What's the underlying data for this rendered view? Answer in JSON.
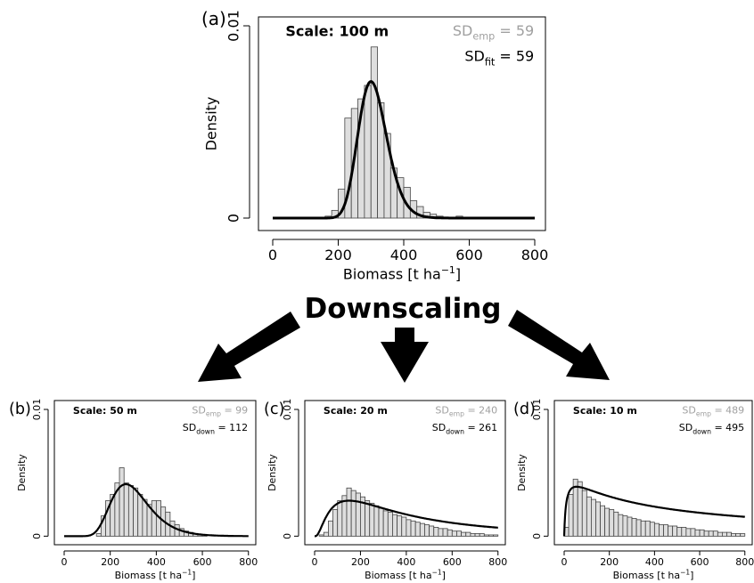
{
  "center_label": "Downscaling",
  "chart_data": [
    {
      "panel": "(a)",
      "type": "bar",
      "xlabel": "Biomass [t ha",
      "xlabel_sup": "−1",
      "xlabel_close": "]",
      "ylabel": "Density",
      "scale_label": "Scale: 100 m",
      "sd_emp": {
        "prefix": "SD",
        "sub": "emp",
        "eq": "=",
        "value": "59"
      },
      "sd_fit": {
        "prefix": "SD",
        "sub": "fit",
        "eq": "=",
        "value": "59"
      },
      "xlim": [
        0,
        800
      ],
      "ylim": [
        0,
        0.01
      ],
      "xticks": [
        "0",
        "200",
        "400",
        "600",
        "800"
      ],
      "yticks": [
        "0",
        "0.01"
      ],
      "bin_width": 20,
      "bins": [
        {
          "x": 160,
          "y": 0.0001
        },
        {
          "x": 180,
          "y": 0.0004
        },
        {
          "x": 200,
          "y": 0.0015
        },
        {
          "x": 220,
          "y": 0.0052
        },
        {
          "x": 240,
          "y": 0.0057
        },
        {
          "x": 260,
          "y": 0.0062
        },
        {
          "x": 280,
          "y": 0.0069
        },
        {
          "x": 300,
          "y": 0.0089
        },
        {
          "x": 320,
          "y": 0.006
        },
        {
          "x": 340,
          "y": 0.0044
        },
        {
          "x": 360,
          "y": 0.0026
        },
        {
          "x": 380,
          "y": 0.0021
        },
        {
          "x": 400,
          "y": 0.0016
        },
        {
          "x": 420,
          "y": 0.0009
        },
        {
          "x": 440,
          "y": 0.0006
        },
        {
          "x": 460,
          "y": 0.0003
        },
        {
          "x": 480,
          "y": 0.0002
        },
        {
          "x": 500,
          "y": 0.0001
        },
        {
          "x": 560,
          "y": 0.0001
        }
      ],
      "curve": {
        "kind": "lognormal",
        "mode": 300,
        "sd": 59,
        "peak": 0.0071
      }
    },
    {
      "panel": "(b)",
      "type": "bar",
      "xlabel": "Biomass [t ha",
      "xlabel_sup": "−1",
      "xlabel_close": "]",
      "ylabel": "Density",
      "scale_label": "Scale: 50 m",
      "sd_emp": {
        "prefix": "SD",
        "sub": "emp",
        "eq": "=",
        "value": "99"
      },
      "sd_fit": {
        "prefix": "SD",
        "sub": "down",
        "eq": "=",
        "value": "112"
      },
      "xlim": [
        0,
        800
      ],
      "ylim": [
        0,
        0.01
      ],
      "xticks": [
        "0",
        "200",
        "400",
        "600",
        "800"
      ],
      "yticks": [
        "0",
        "0.01"
      ],
      "bin_width": 20,
      "bins": [
        {
          "x": 140,
          "y": 0.0002
        },
        {
          "x": 160,
          "y": 0.0016
        },
        {
          "x": 180,
          "y": 0.0028
        },
        {
          "x": 200,
          "y": 0.0033
        },
        {
          "x": 220,
          "y": 0.0042
        },
        {
          "x": 240,
          "y": 0.0054
        },
        {
          "x": 260,
          "y": 0.0042
        },
        {
          "x": 280,
          "y": 0.004
        },
        {
          "x": 300,
          "y": 0.0038
        },
        {
          "x": 320,
          "y": 0.0033
        },
        {
          "x": 340,
          "y": 0.0029
        },
        {
          "x": 360,
          "y": 0.0025
        },
        {
          "x": 380,
          "y": 0.0028
        },
        {
          "x": 400,
          "y": 0.0028
        },
        {
          "x": 420,
          "y": 0.0023
        },
        {
          "x": 440,
          "y": 0.0019
        },
        {
          "x": 460,
          "y": 0.0012
        },
        {
          "x": 480,
          "y": 0.0009
        },
        {
          "x": 500,
          "y": 0.0006
        },
        {
          "x": 520,
          "y": 0.0004
        },
        {
          "x": 540,
          "y": 0.0003
        },
        {
          "x": 560,
          "y": 0.0002
        },
        {
          "x": 580,
          "y": 0.0001
        },
        {
          "x": 600,
          "y": 0.0001
        }
      ],
      "curve": {
        "kind": "lognormal",
        "mode": 268,
        "sd": 112,
        "peak": 0.0041
      }
    },
    {
      "panel": "(c)",
      "type": "bar",
      "xlabel": "Biomass [t ha",
      "xlabel_sup": "−1",
      "xlabel_close": "]",
      "ylabel": "Density",
      "scale_label": "Scale: 20 m",
      "sd_emp": {
        "prefix": "SD",
        "sub": "emp",
        "eq": "=",
        "value": "240"
      },
      "sd_fit": {
        "prefix": "SD",
        "sub": "down",
        "eq": "=",
        "value": "261"
      },
      "xlim": [
        0,
        800
      ],
      "ylim": [
        0,
        0.01
      ],
      "xticks": [
        "0",
        "200",
        "400",
        "600",
        "800"
      ],
      "yticks": [
        "0",
        "0.01"
      ],
      "bin_width": 20,
      "bins": [
        {
          "x": 20,
          "y": 0.0001
        },
        {
          "x": 40,
          "y": 0.0003
        },
        {
          "x": 60,
          "y": 0.0012
        },
        {
          "x": 80,
          "y": 0.0021
        },
        {
          "x": 100,
          "y": 0.0028
        },
        {
          "x": 120,
          "y": 0.0032
        },
        {
          "x": 140,
          "y": 0.0038
        },
        {
          "x": 160,
          "y": 0.0036
        },
        {
          "x": 180,
          "y": 0.0034
        },
        {
          "x": 200,
          "y": 0.0031
        },
        {
          "x": 220,
          "y": 0.0028
        },
        {
          "x": 240,
          "y": 0.0026
        },
        {
          "x": 260,
          "y": 0.0024
        },
        {
          "x": 280,
          "y": 0.0022
        },
        {
          "x": 300,
          "y": 0.002
        },
        {
          "x": 320,
          "y": 0.0019
        },
        {
          "x": 340,
          "y": 0.0017
        },
        {
          "x": 360,
          "y": 0.0016
        },
        {
          "x": 380,
          "y": 0.0015
        },
        {
          "x": 400,
          "y": 0.0013
        },
        {
          "x": 420,
          "y": 0.0012
        },
        {
          "x": 440,
          "y": 0.0011
        },
        {
          "x": 460,
          "y": 0.001
        },
        {
          "x": 480,
          "y": 0.0009
        },
        {
          "x": 500,
          "y": 0.0008
        },
        {
          "x": 520,
          "y": 0.0007
        },
        {
          "x": 540,
          "y": 0.0006
        },
        {
          "x": 560,
          "y": 0.0006
        },
        {
          "x": 580,
          "y": 0.0005
        },
        {
          "x": 600,
          "y": 0.0004
        },
        {
          "x": 620,
          "y": 0.0004
        },
        {
          "x": 640,
          "y": 0.0003
        },
        {
          "x": 660,
          "y": 0.0003
        },
        {
          "x": 680,
          "y": 0.0002
        },
        {
          "x": 700,
          "y": 0.0002
        },
        {
          "x": 720,
          "y": 0.0002
        },
        {
          "x": 740,
          "y": 0.0001
        },
        {
          "x": 760,
          "y": 0.0001
        },
        {
          "x": 780,
          "y": 0.0001
        }
      ],
      "curve": {
        "kind": "lognormal",
        "mode": 150,
        "sd": 261,
        "peak": 0.0028
      }
    },
    {
      "panel": "(d)",
      "type": "bar",
      "xlabel": "Biomass [t ha",
      "xlabel_sup": "−1",
      "xlabel_close": "]",
      "ylabel": "Density",
      "scale_label": "Scale: 10 m",
      "sd_emp": {
        "prefix": "SD",
        "sub": "emp",
        "eq": "=",
        "value": "489"
      },
      "sd_fit": {
        "prefix": "SD",
        "sub": "down",
        "eq": "=",
        "value": "495"
      },
      "xlim": [
        0,
        800
      ],
      "ylim": [
        0,
        0.01
      ],
      "xticks": [
        "0",
        "200",
        "400",
        "600",
        "800"
      ],
      "yticks": [
        "0",
        "0.01"
      ],
      "bin_width": 20,
      "bins": [
        {
          "x": 0,
          "y": 0.0007
        },
        {
          "x": 20,
          "y": 0.0033
        },
        {
          "x": 40,
          "y": 0.0045
        },
        {
          "x": 60,
          "y": 0.0043
        },
        {
          "x": 80,
          "y": 0.0036
        },
        {
          "x": 100,
          "y": 0.0031
        },
        {
          "x": 120,
          "y": 0.0029
        },
        {
          "x": 140,
          "y": 0.0027
        },
        {
          "x": 160,
          "y": 0.0024
        },
        {
          "x": 180,
          "y": 0.0022
        },
        {
          "x": 200,
          "y": 0.0021
        },
        {
          "x": 220,
          "y": 0.0019
        },
        {
          "x": 240,
          "y": 0.0017
        },
        {
          "x": 260,
          "y": 0.0016
        },
        {
          "x": 280,
          "y": 0.0015
        },
        {
          "x": 300,
          "y": 0.0014
        },
        {
          "x": 320,
          "y": 0.0013
        },
        {
          "x": 340,
          "y": 0.0012
        },
        {
          "x": 360,
          "y": 0.0012
        },
        {
          "x": 380,
          "y": 0.0011
        },
        {
          "x": 400,
          "y": 0.001
        },
        {
          "x": 420,
          "y": 0.0009
        },
        {
          "x": 440,
          "y": 0.0009
        },
        {
          "x": 460,
          "y": 0.0008
        },
        {
          "x": 480,
          "y": 0.0008
        },
        {
          "x": 500,
          "y": 0.0007
        },
        {
          "x": 520,
          "y": 0.0007
        },
        {
          "x": 540,
          "y": 0.0006
        },
        {
          "x": 560,
          "y": 0.0006
        },
        {
          "x": 580,
          "y": 0.0005
        },
        {
          "x": 600,
          "y": 0.0005
        },
        {
          "x": 620,
          "y": 0.0004
        },
        {
          "x": 640,
          "y": 0.0004
        },
        {
          "x": 660,
          "y": 0.0004
        },
        {
          "x": 680,
          "y": 0.0003
        },
        {
          "x": 700,
          "y": 0.0003
        },
        {
          "x": 720,
          "y": 0.0003
        },
        {
          "x": 740,
          "y": 0.0002
        },
        {
          "x": 760,
          "y": 0.0002
        },
        {
          "x": 780,
          "y": 0.0002
        }
      ],
      "curve": {
        "kind": "lognormal",
        "mode": 55,
        "sd": 495,
        "peak": 0.0039
      }
    }
  ]
}
